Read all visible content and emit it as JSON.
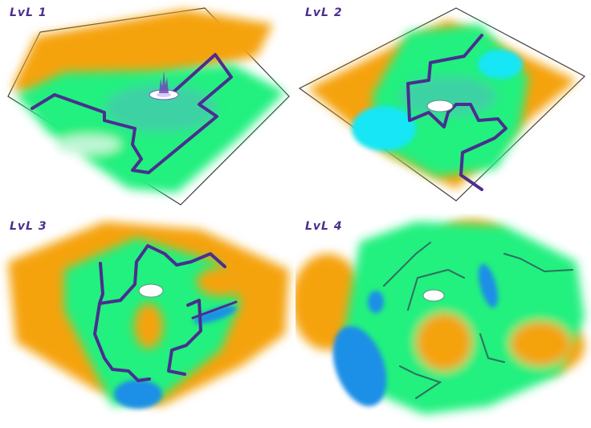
{
  "colors": {
    "orange": "#f5a30f",
    "green": "#21f07f",
    "light_green": "#3ed2a4",
    "cyan": "#14e6f5",
    "blue": "#1f8fe6",
    "wall": "#4a2e8f",
    "label": "#4a2e8f"
  },
  "levels": [
    {
      "label": "LvL 1",
      "icon": "spire-marker-icon"
    },
    {
      "label": "LvL 2",
      "icon": "white-stone-icon"
    },
    {
      "label": "LvL 3",
      "icon": "white-stone-icon"
    },
    {
      "label": "LvL 4",
      "icon": "white-stone-icon"
    }
  ]
}
